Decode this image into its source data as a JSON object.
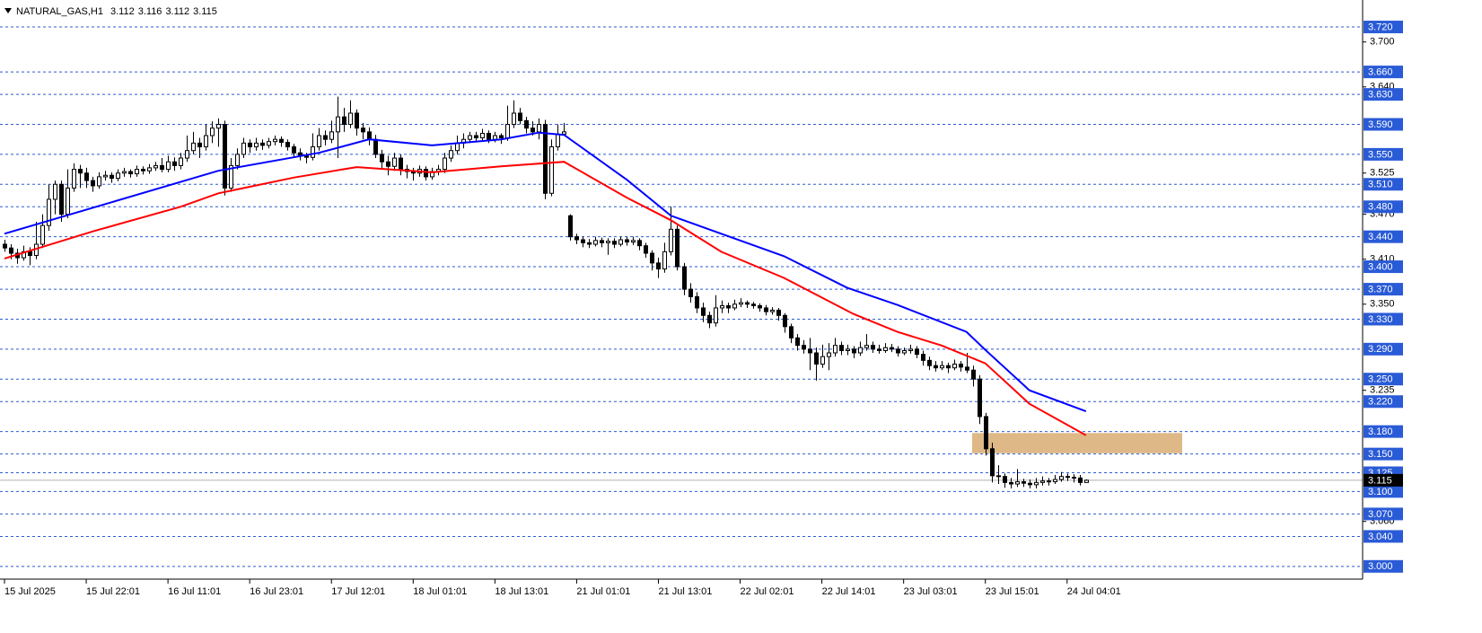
{
  "chart_data": {
    "type": "candlestick",
    "symbol": "NATURAL_GAS,H1",
    "up_color": "#ffffff",
    "down_color": "#000000",
    "wick_color": "#000000",
    "level_color": "#2a5bd7",
    "level_label_bg": "#2a5bd7",
    "price_line_color": "#b0b0b0",
    "ylim": [
      2.983,
      3.756
    ],
    "xlim": [
      0,
      216
    ],
    "yticks": [
      {
        "value": 3.7,
        "label": "3.700"
      },
      {
        "value": 3.64,
        "label": "3.640"
      },
      {
        "value": 3.525,
        "label": "3.525"
      },
      {
        "value": 3.47,
        "label": "3.470"
      },
      {
        "value": 3.41,
        "label": "3.410"
      },
      {
        "value": 3.35,
        "label": "3.350"
      },
      {
        "value": 3.235,
        "label": "3.235"
      },
      {
        "value": 3.06,
        "label": "3.060"
      }
    ],
    "levels": [
      {
        "value": 3.72,
        "label": "3.720"
      },
      {
        "value": 3.66,
        "label": "3.660"
      },
      {
        "value": 3.63,
        "label": "3.630"
      },
      {
        "value": 3.59,
        "label": "3.590"
      },
      {
        "value": 3.55,
        "label": "3.550"
      },
      {
        "value": 3.51,
        "label": "3.510"
      },
      {
        "value": 3.48,
        "label": "3.480"
      },
      {
        "value": 3.44,
        "label": "3.440"
      },
      {
        "value": 3.4,
        "label": "3.400"
      },
      {
        "value": 3.37,
        "label": "3.370"
      },
      {
        "value": 3.33,
        "label": "3.330"
      },
      {
        "value": 3.29,
        "label": "3.290"
      },
      {
        "value": 3.25,
        "label": "3.250"
      },
      {
        "value": 3.22,
        "label": "3.220"
      },
      {
        "value": 3.18,
        "label": "3.180"
      },
      {
        "value": 3.15,
        "label": "3.150"
      },
      {
        "value": 3.125,
        "label": "3.125"
      },
      {
        "value": 3.1,
        "label": "3.100"
      },
      {
        "value": 3.07,
        "label": "3.070"
      },
      {
        "value": 3.04,
        "label": "3.040"
      },
      {
        "value": 3.0,
        "label": "3.000"
      }
    ],
    "xticks": [
      {
        "value": 0,
        "label": "15 Jul 2025"
      },
      {
        "value": 13,
        "label": "15 Jul 22:01"
      },
      {
        "value": 26,
        "label": "16 Jul 11:01"
      },
      {
        "value": 39,
        "label": "16 Jul 23:01"
      },
      {
        "value": 52,
        "label": "17 Jul 12:01"
      },
      {
        "value": 65,
        "label": "18 Jul 01:01"
      },
      {
        "value": 78,
        "label": "18 Jul 13:01"
      },
      {
        "value": 91,
        "label": "21 Jul 01:01"
      },
      {
        "value": 104,
        "label": "21 Jul 13:01"
      },
      {
        "value": 117,
        "label": "22 Jul 02:01"
      },
      {
        "value": 130,
        "label": "22 Jul 14:01"
      },
      {
        "value": 143,
        "label": "23 Jul 03:01"
      },
      {
        "value": 156,
        "label": "23 Jul 15:01"
      },
      {
        "value": 169,
        "label": "24 Jul 04:01"
      }
    ],
    "zone": {
      "color": "#deb887",
      "top": 3.178,
      "bottom": 3.151,
      "x": [
        153.9,
        187.3
      ]
    },
    "ma_lines": [
      {
        "color": "#0000ff",
        "x": [
          0,
          17,
          34,
          50,
          58,
          68,
          79,
          85,
          89,
          99,
          106,
          114,
          124,
          134,
          142,
          153,
          156,
          163,
          172
        ],
        "values": [
          3.444,
          3.486,
          3.528,
          3.552,
          3.57,
          3.562,
          3.57,
          3.579,
          3.576,
          3.516,
          3.468,
          3.444,
          3.414,
          3.372,
          3.349,
          3.313,
          3.289,
          3.235,
          3.207
        ]
      },
      {
        "color": "#ff0000",
        "x": [
          0,
          14,
          28,
          34,
          46,
          56,
          68,
          79,
          89,
          99,
          106,
          114,
          124,
          135,
          142,
          149,
          156,
          163,
          172
        ],
        "values": [
          3.411,
          3.447,
          3.48,
          3.498,
          3.519,
          3.533,
          3.526,
          3.534,
          3.54,
          3.492,
          3.462,
          3.42,
          3.385,
          3.337,
          3.313,
          3.295,
          3.271,
          3.217,
          3.175
        ]
      }
    ],
    "candles": [
      [
        3.43,
        3.436,
        3.42,
        3.425
      ],
      [
        3.425,
        3.43,
        3.41,
        3.418
      ],
      [
        3.418,
        3.424,
        3.404,
        3.412
      ],
      [
        3.412,
        3.428,
        3.408,
        3.42
      ],
      [
        3.42,
        3.426,
        3.402,
        3.415
      ],
      [
        3.415,
        3.46,
        3.41,
        3.43
      ],
      [
        3.43,
        3.47,
        3.425,
        3.455
      ],
      [
        3.455,
        3.51,
        3.448,
        3.49
      ],
      [
        3.49,
        3.515,
        3.47,
        3.51
      ],
      [
        3.51,
        3.515,
        3.46,
        3.47
      ],
      [
        3.47,
        3.53,
        3.465,
        3.505
      ],
      [
        3.505,
        3.538,
        3.5,
        3.53
      ],
      [
        3.53,
        3.536,
        3.505,
        3.525
      ],
      [
        3.525,
        3.532,
        3.505,
        3.515
      ],
      [
        3.515,
        3.52,
        3.5,
        3.508
      ],
      [
        3.508,
        3.526,
        3.504,
        3.52
      ],
      [
        3.52,
        3.528,
        3.515,
        3.522
      ],
      [
        3.522,
        3.526,
        3.512,
        3.518
      ],
      [
        3.518,
        3.53,
        3.514,
        3.525
      ],
      [
        3.525,
        3.532,
        3.52,
        3.527
      ],
      [
        3.527,
        3.53,
        3.519,
        3.524
      ],
      [
        3.524,
        3.535,
        3.52,
        3.53
      ],
      [
        3.53,
        3.534,
        3.523,
        3.528
      ],
      [
        3.528,
        3.537,
        3.524,
        3.532
      ],
      [
        3.532,
        3.54,
        3.528,
        3.535
      ],
      [
        3.535,
        3.545,
        3.526,
        3.53
      ],
      [
        3.53,
        3.548,
        3.526,
        3.54
      ],
      [
        3.54,
        3.546,
        3.528,
        3.535
      ],
      [
        3.535,
        3.552,
        3.53,
        3.545
      ],
      [
        3.545,
        3.575,
        3.54,
        3.555
      ],
      [
        3.555,
        3.58,
        3.55,
        3.565
      ],
      [
        3.565,
        3.572,
        3.545,
        3.56
      ],
      [
        3.56,
        3.59,
        3.555,
        3.575
      ],
      [
        3.575,
        3.594,
        3.565,
        3.585
      ],
      [
        3.585,
        3.598,
        3.56,
        3.59
      ],
      [
        3.59,
        3.595,
        3.495,
        3.505
      ],
      [
        3.505,
        3.545,
        3.5,
        3.535
      ],
      [
        3.535,
        3.558,
        3.53,
        3.55
      ],
      [
        3.55,
        3.572,
        3.545,
        3.565
      ],
      [
        3.565,
        3.57,
        3.552,
        3.56
      ],
      [
        3.56,
        3.572,
        3.555,
        3.565
      ],
      [
        3.565,
        3.57,
        3.556,
        3.562
      ],
      [
        3.562,
        3.572,
        3.558,
        3.567
      ],
      [
        3.567,
        3.575,
        3.562,
        3.57
      ],
      [
        3.57,
        3.574,
        3.56,
        3.566
      ],
      [
        3.566,
        3.57,
        3.555,
        3.56
      ],
      [
        3.56,
        3.564,
        3.546,
        3.552
      ],
      [
        3.552,
        3.558,
        3.542,
        3.548
      ],
      [
        3.548,
        3.552,
        3.538,
        3.546
      ],
      [
        3.546,
        3.578,
        3.542,
        3.56
      ],
      [
        3.56,
        3.585,
        3.555,
        3.575
      ],
      [
        3.575,
        3.582,
        3.562,
        3.57
      ],
      [
        3.57,
        3.595,
        3.565,
        3.58
      ],
      [
        3.58,
        3.627,
        3.545,
        3.6
      ],
      [
        3.6,
        3.612,
        3.58,
        3.59
      ],
      [
        3.59,
        3.622,
        3.585,
        3.605
      ],
      [
        3.605,
        3.61,
        3.575,
        3.585
      ],
      [
        3.585,
        3.592,
        3.57,
        3.58
      ],
      [
        3.58,
        3.586,
        3.562,
        3.57
      ],
      [
        3.57,
        3.576,
        3.545,
        3.55
      ],
      [
        3.55,
        3.556,
        3.53,
        3.54
      ],
      [
        3.54,
        3.548,
        3.522,
        3.534
      ],
      [
        3.534,
        3.552,
        3.528,
        3.545
      ],
      [
        3.545,
        3.55,
        3.522,
        3.53
      ],
      [
        3.53,
        3.536,
        3.518,
        3.527
      ],
      [
        3.527,
        3.532,
        3.515,
        3.525
      ],
      [
        3.525,
        3.535,
        3.52,
        3.53
      ],
      [
        3.53,
        3.534,
        3.515,
        3.52
      ],
      [
        3.52,
        3.532,
        3.516,
        3.527
      ],
      [
        3.527,
        3.536,
        3.522,
        3.53
      ],
      [
        3.53,
        3.552,
        3.525,
        3.545
      ],
      [
        3.545,
        3.562,
        3.54,
        3.555
      ],
      [
        3.555,
        3.575,
        3.55,
        3.565
      ],
      [
        3.565,
        3.578,
        3.558,
        3.57
      ],
      [
        3.57,
        3.58,
        3.565,
        3.575
      ],
      [
        3.575,
        3.58,
        3.566,
        3.572
      ],
      [
        3.572,
        3.584,
        3.568,
        3.578
      ],
      [
        3.578,
        3.582,
        3.565,
        3.57
      ],
      [
        3.57,
        3.58,
        3.566,
        3.575
      ],
      [
        3.575,
        3.578,
        3.564,
        3.572
      ],
      [
        3.572,
        3.615,
        3.568,
        3.59
      ],
      [
        3.59,
        3.622,
        3.585,
        3.605
      ],
      [
        3.605,
        3.612,
        3.59,
        3.595
      ],
      [
        3.595,
        3.6,
        3.578,
        3.585
      ],
      [
        3.585,
        3.594,
        3.575,
        3.58
      ],
      [
        3.58,
        3.598,
        3.57,
        3.59
      ],
      [
        3.59,
        3.596,
        3.49,
        3.498
      ],
      [
        3.498,
        3.57,
        3.494,
        3.56
      ],
      [
        3.56,
        3.59,
        3.555,
        3.577
      ],
      [
        3.577,
        3.592,
        3.575,
        3.58
      ],
      [
        3.468,
        3.47,
        3.435,
        3.44
      ],
      [
        3.44,
        3.444,
        3.43,
        3.436
      ],
      [
        3.436,
        3.44,
        3.426,
        3.432
      ],
      [
        3.432,
        3.437,
        3.425,
        3.43
      ],
      [
        3.43,
        3.44,
        3.427,
        3.435
      ],
      [
        3.435,
        3.439,
        3.426,
        3.432
      ],
      [
        3.432,
        3.438,
        3.416,
        3.434
      ],
      [
        3.434,
        3.438,
        3.425,
        3.43
      ],
      [
        3.43,
        3.44,
        3.427,
        3.436
      ],
      [
        3.436,
        3.44,
        3.428,
        3.433
      ],
      [
        3.433,
        3.44,
        3.429,
        3.435
      ],
      [
        3.435,
        3.438,
        3.422,
        3.428
      ],
      [
        3.428,
        3.432,
        3.412,
        3.418
      ],
      [
        3.418,
        3.422,
        3.395,
        3.405
      ],
      [
        3.405,
        3.412,
        3.385,
        3.397
      ],
      [
        3.397,
        3.432,
        3.392,
        3.42
      ],
      [
        3.42,
        3.48,
        3.415,
        3.45
      ],
      [
        3.45,
        3.455,
        3.395,
        3.4
      ],
      [
        3.4,
        3.405,
        3.362,
        3.37
      ],
      [
        3.37,
        3.378,
        3.352,
        3.36
      ],
      [
        3.36,
        3.366,
        3.338,
        3.345
      ],
      [
        3.345,
        3.352,
        3.326,
        3.335
      ],
      [
        3.335,
        3.34,
        3.318,
        3.325
      ],
      [
        3.325,
        3.362,
        3.32,
        3.345
      ],
      [
        3.345,
        3.355,
        3.338,
        3.348
      ],
      [
        3.348,
        3.352,
        3.338,
        3.345
      ],
      [
        3.345,
        3.356,
        3.342,
        3.35
      ],
      [
        3.35,
        3.358,
        3.346,
        3.352
      ],
      [
        3.352,
        3.355,
        3.345,
        3.35
      ],
      [
        3.35,
        3.353,
        3.344,
        3.348
      ],
      [
        3.348,
        3.351,
        3.34,
        3.345
      ],
      [
        3.345,
        3.349,
        3.335,
        3.34
      ],
      [
        3.34,
        3.346,
        3.336,
        3.342
      ],
      [
        3.342,
        3.345,
        3.328,
        3.335
      ],
      [
        3.335,
        3.338,
        3.312,
        3.32
      ],
      [
        3.32,
        3.324,
        3.298,
        3.305
      ],
      [
        3.305,
        3.31,
        3.288,
        3.295
      ],
      [
        3.295,
        3.302,
        3.284,
        3.29
      ],
      [
        3.29,
        3.305,
        3.262,
        3.285
      ],
      [
        3.285,
        3.292,
        3.248,
        3.27
      ],
      [
        3.27,
        3.296,
        3.265,
        3.28
      ],
      [
        3.28,
        3.298,
        3.262,
        3.285
      ],
      [
        3.285,
        3.305,
        3.28,
        3.295
      ],
      [
        3.295,
        3.3,
        3.282,
        3.288
      ],
      [
        3.288,
        3.296,
        3.282,
        3.29
      ],
      [
        3.29,
        3.294,
        3.278,
        3.285
      ],
      [
        3.285,
        3.3,
        3.281,
        3.292
      ],
      [
        3.292,
        3.31,
        3.288,
        3.295
      ],
      [
        3.295,
        3.3,
        3.285,
        3.29
      ],
      [
        3.29,
        3.296,
        3.284,
        3.288
      ],
      [
        3.288,
        3.298,
        3.285,
        3.292
      ],
      [
        3.292,
        3.297,
        3.286,
        3.29
      ],
      [
        3.29,
        3.294,
        3.28,
        3.285
      ],
      [
        3.285,
        3.292,
        3.282,
        3.288
      ],
      [
        3.288,
        3.296,
        3.284,
        3.29
      ],
      [
        3.29,
        3.294,
        3.278,
        3.283
      ],
      [
        3.283,
        3.288,
        3.268,
        3.275
      ],
      [
        3.275,
        3.28,
        3.262,
        3.268
      ],
      [
        3.268,
        3.274,
        3.26,
        3.265
      ],
      [
        3.265,
        3.274,
        3.262,
        3.268
      ],
      [
        3.268,
        3.272,
        3.258,
        3.265
      ],
      [
        3.265,
        3.276,
        3.262,
        3.27
      ],
      [
        3.27,
        3.274,
        3.26,
        3.266
      ],
      [
        3.266,
        3.285,
        3.258,
        3.262
      ],
      [
        3.262,
        3.268,
        3.24,
        3.25
      ],
      [
        3.25,
        3.255,
        3.19,
        3.2
      ],
      [
        3.2,
        3.205,
        3.148,
        3.157
      ],
      [
        3.157,
        3.165,
        3.112,
        3.121
      ],
      [
        3.121,
        3.135,
        3.11,
        3.12
      ],
      [
        3.12,
        3.124,
        3.105,
        3.112
      ],
      [
        3.112,
        3.118,
        3.104,
        3.11
      ],
      [
        3.11,
        3.13,
        3.106,
        3.113
      ],
      [
        3.113,
        3.117,
        3.106,
        3.111
      ],
      [
        3.111,
        3.116,
        3.104,
        3.109
      ],
      [
        3.109,
        3.118,
        3.104,
        3.112
      ],
      [
        3.112,
        3.12,
        3.108,
        3.114
      ],
      [
        3.114,
        3.118,
        3.108,
        3.113
      ],
      [
        3.113,
        3.122,
        3.11,
        3.116
      ],
      [
        3.116,
        3.126,
        3.113,
        3.12
      ],
      [
        3.12,
        3.124,
        3.114,
        3.119
      ],
      [
        3.119,
        3.123,
        3.112,
        3.118
      ],
      [
        3.118,
        3.122,
        3.108,
        3.112
      ],
      [
        3.112,
        3.116,
        3.112,
        3.115
      ]
    ]
  }
}
